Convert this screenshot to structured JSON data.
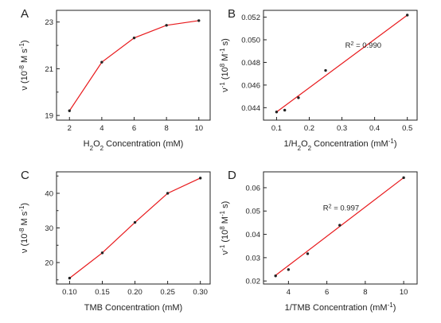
{
  "chart_data": [
    {
      "panel": "A",
      "type": "line",
      "x": [
        2,
        4,
        6,
        8,
        10
      ],
      "y": [
        19.2,
        21.28,
        22.32,
        22.86,
        23.06
      ],
      "xlim": [
        1.2,
        10.7
      ],
      "ylim": [
        18.8,
        23.5
      ],
      "xticks": [
        2,
        4,
        6,
        8,
        10
      ],
      "xtick_labels": [
        "2",
        "4",
        "6",
        "8",
        "10"
      ],
      "yticks": [
        19,
        21,
        23
      ],
      "ytick_labels": [
        "19",
        "21",
        "23"
      ],
      "yminor": [
        20,
        22
      ],
      "xlabel_html": "H<tspan baseline-shift=\"sub\" font-size=\"8px\">2</tspan>O<tspan baseline-shift=\"sub\" font-size=\"8px\">2</tspan> Concentration (mM)",
      "ylabel_html": "ν (10<tspan baseline-shift=\"super\" font-size=\"8px\">-8</tspan> M s<tspan baseline-shift=\"super\" font-size=\"8px\">-1</tspan>)",
      "line_color": "#e8191c",
      "grid": false
    },
    {
      "panel": "B",
      "type": "scatter",
      "fit": "linear",
      "x": [
        0.1,
        0.125,
        0.167,
        0.25,
        0.5
      ],
      "y": [
        0.04362,
        0.04378,
        0.04488,
        0.04729,
        0.05218
      ],
      "fit_line": {
        "x": [
          0.1,
          0.5
        ],
        "y": [
          0.04362,
          0.05218
        ]
      },
      "xlim": [
        0.06,
        0.53
      ],
      "ylim": [
        0.0429,
        0.0526
      ],
      "xticks": [
        0.1,
        0.2,
        0.3,
        0.4,
        0.5
      ],
      "xtick_labels": [
        "0.1",
        "0.2",
        "0.3",
        "0.4",
        "0.5"
      ],
      "yticks": [
        0.044,
        0.046,
        0.048,
        0.05,
        0.052
      ],
      "ytick_labels": [
        "0.044",
        "0.046",
        "0.048",
        "0.050",
        "0.052"
      ],
      "annotation_html": "R<tspan baseline-shift=\"super\" font-size=\"7px\">2</tspan> = 0.990",
      "annotation_at": {
        "x": 0.31,
        "y": 0.0493
      },
      "xlabel_html": "1/H<tspan baseline-shift=\"sub\" font-size=\"8px\">2</tspan>O<tspan baseline-shift=\"sub\" font-size=\"8px\">2</tspan> Concentration (mM<tspan baseline-shift=\"super\" font-size=\"8px\">-1</tspan>)",
      "ylabel_html": "ν<tspan baseline-shift=\"super\" font-size=\"8px\">-1</tspan> (10<tspan baseline-shift=\"super\" font-size=\"8px\">8</tspan> M<tspan baseline-shift=\"super\" font-size=\"8px\">-1</tspan> s)",
      "line_color": "#e8191c",
      "grid": false
    },
    {
      "panel": "C",
      "type": "line",
      "x": [
        0.1,
        0.15,
        0.2,
        0.25,
        0.3
      ],
      "y": [
        15.5,
        22.8,
        31.6,
        40.0,
        44.4
      ],
      "xlim": [
        0.08,
        0.315
      ],
      "ylim": [
        13.8,
        46.2
      ],
      "xticks": [
        0.1,
        0.15,
        0.2,
        0.25,
        0.3
      ],
      "xtick_labels": [
        "0.10",
        "0.15",
        "0.20",
        "0.25",
        "0.30"
      ],
      "yticks": [
        20,
        30,
        40
      ],
      "ytick_labels": [
        "20",
        "30",
        "40"
      ],
      "yminor": [
        15,
        25,
        35,
        45
      ],
      "xlabel_html": "TMB Concentration (mM)",
      "ylabel_html": "ν (10<tspan baseline-shift=\"super\" font-size=\"8px\">-8</tspan> M s<tspan baseline-shift=\"super\" font-size=\"8px\">-1</tspan>)",
      "line_color": "#e8191c",
      "grid": false
    },
    {
      "panel": "D",
      "type": "scatter",
      "fit": "linear",
      "x": [
        3.33,
        4.0,
        5.0,
        6.67,
        10.0
      ],
      "y": [
        0.0222,
        0.0249,
        0.0317,
        0.0439,
        0.0643
      ],
      "fit_line": {
        "x": [
          3.33,
          10.0
        ],
        "y": [
          0.0224,
          0.0643
        ]
      },
      "xlim": [
        2.7,
        10.7
      ],
      "ylim": [
        0.0187,
        0.0668
      ],
      "xticks": [
        4,
        6,
        8,
        10
      ],
      "xtick_labels": [
        "4",
        "6",
        "8",
        "10"
      ],
      "yticks": [
        0.02,
        0.03,
        0.04,
        0.05,
        0.06
      ],
      "ytick_labels": [
        "0.02",
        "0.03",
        "0.04",
        "0.05",
        "0.06"
      ],
      "annotation_html": "R<tspan baseline-shift=\"super\" font-size=\"7px\">2</tspan> = 0.997",
      "annotation_at": {
        "x": 5.8,
        "y": 0.0502
      },
      "xlabel_html": "1/TMB Concentration (mM<tspan baseline-shift=\"super\" font-size=\"8px\">-1</tspan>)",
      "ylabel_html": "ν<tspan baseline-shift=\"super\" font-size=\"8px\">-1</tspan> (10<tspan baseline-shift=\"super\" font-size=\"8px\">8</tspan> M<tspan baseline-shift=\"super\" font-size=\"8px\">-1</tspan> s)",
      "line_color": "#e8191c",
      "grid": false
    }
  ]
}
